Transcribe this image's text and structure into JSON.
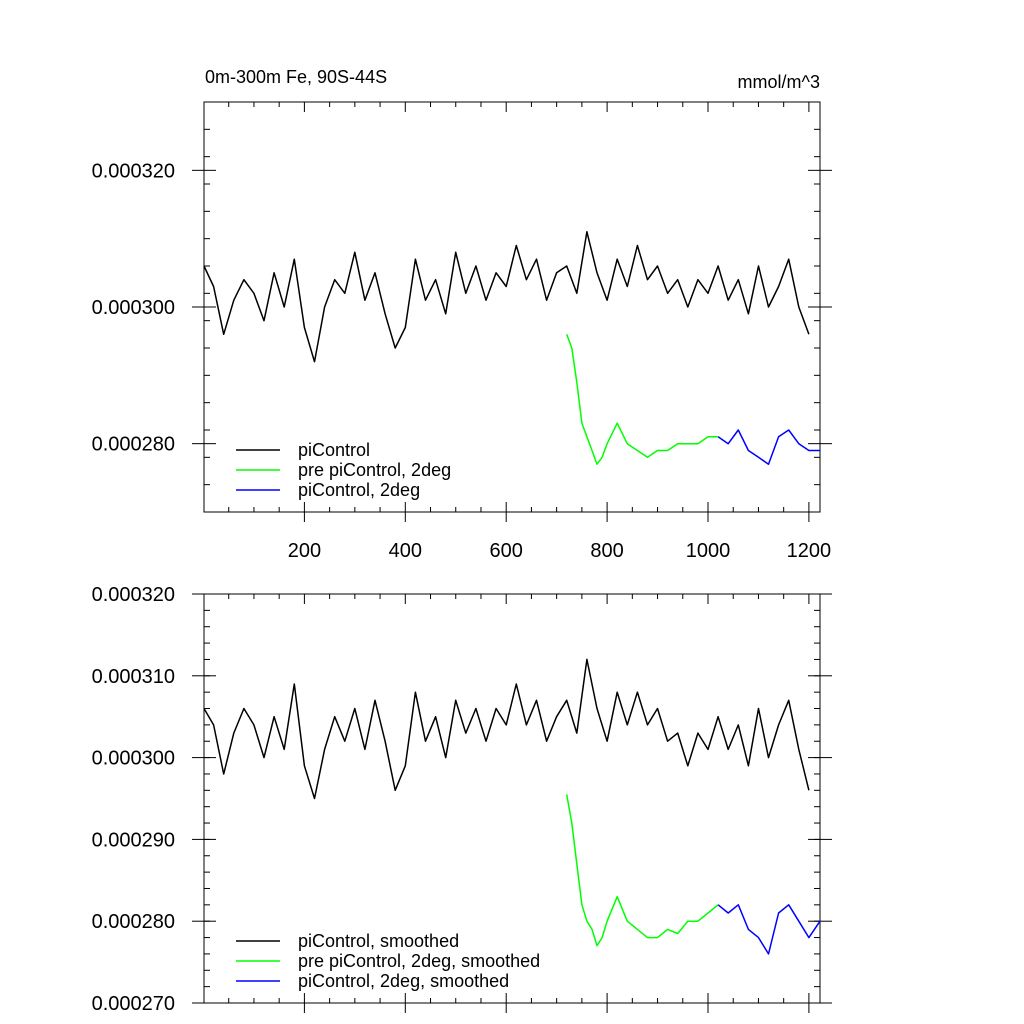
{
  "chart_data": [
    {
      "type": "line",
      "title": "0m-300m Fe, 90S-44S",
      "units": "mmol/m^3",
      "xlim": [
        1,
        1222
      ],
      "ylim": [
        0.00027,
        0.00033
      ],
      "x_ticks": [
        200,
        400,
        600,
        800,
        1000,
        1200
      ],
      "y_ticks": [
        0.00028,
        0.0003,
        0.00032
      ],
      "x_tick_labels": [
        "200",
        "400",
        "600",
        "800",
        "1000",
        "1200"
      ],
      "y_tick_labels": [
        "0.000280",
        "0.000300",
        "0.000320"
      ],
      "legend_position": "bottom-left",
      "series": [
        {
          "name": "piControl",
          "color": "#000000",
          "x": [
            1,
            20,
            40,
            60,
            80,
            100,
            120,
            140,
            160,
            180,
            200,
            220,
            240,
            260,
            280,
            300,
            320,
            340,
            360,
            380,
            400,
            420,
            440,
            460,
            480,
            500,
            520,
            540,
            560,
            580,
            600,
            620,
            640,
            660,
            680,
            700,
            720,
            740,
            760,
            780,
            800,
            820,
            840,
            860,
            880,
            900,
            920,
            940,
            960,
            980,
            1000,
            1020,
            1040,
            1060,
            1080,
            1100,
            1120,
            1140,
            1160,
            1180,
            1200
          ],
          "values": [
            0.000306,
            0.000303,
            0.000296,
            0.000301,
            0.000304,
            0.000302,
            0.000298,
            0.000305,
            0.0003,
            0.000307,
            0.000297,
            0.000292,
            0.0003,
            0.000304,
            0.000302,
            0.000308,
            0.000301,
            0.000305,
            0.000299,
            0.000294,
            0.000297,
            0.000307,
            0.000301,
            0.000304,
            0.000299,
            0.000308,
            0.000302,
            0.000306,
            0.000301,
            0.000305,
            0.000303,
            0.000309,
            0.000304,
            0.000307,
            0.000301,
            0.000305,
            0.000306,
            0.000302,
            0.000311,
            0.000305,
            0.000301,
            0.000307,
            0.000303,
            0.000309,
            0.000304,
            0.000306,
            0.000302,
            0.000304,
            0.0003,
            0.000304,
            0.000302,
            0.000306,
            0.000301,
            0.000304,
            0.000299,
            0.000306,
            0.0003,
            0.000303,
            0.000307,
            0.0003,
            0.000296
          ]
        },
        {
          "name": "pre piControl, 2deg",
          "color": "#00ff00",
          "x": [
            720,
            730,
            740,
            750,
            760,
            770,
            780,
            790,
            800,
            820,
            840,
            860,
            880,
            900,
            920,
            940,
            960,
            980,
            1000,
            1020
          ],
          "values": [
            0.000296,
            0.000294,
            0.000289,
            0.000283,
            0.000281,
            0.000279,
            0.000277,
            0.000278,
            0.00028,
            0.000283,
            0.00028,
            0.000279,
            0.000278,
            0.000279,
            0.000279,
            0.00028,
            0.00028,
            0.00028,
            0.000281,
            0.000281
          ]
        },
        {
          "name": "piControl, 2deg",
          "color": "#0000ff",
          "x": [
            1020,
            1040,
            1060,
            1080,
            1100,
            1120,
            1140,
            1160,
            1180,
            1200,
            1222
          ],
          "values": [
            0.000281,
            0.00028,
            0.000282,
            0.000279,
            0.000278,
            0.000277,
            0.000281,
            0.000282,
            0.00028,
            0.000279,
            0.000279
          ]
        }
      ]
    },
    {
      "type": "line",
      "xlim": [
        1,
        1222
      ],
      "ylim": [
        0.00027,
        0.00032
      ],
      "x_ticks": [
        200,
        400,
        600,
        800,
        1000,
        1200
      ],
      "y_ticks": [
        0.00027,
        0.00028,
        0.00029,
        0.0003,
        0.00031,
        0.00032
      ],
      "y_tick_labels": [
        "0.000270",
        "0.000280",
        "0.000290",
        "0.000300",
        "0.000310",
        "0.000320"
      ],
      "legend_position": "bottom-left",
      "series": [
        {
          "name": "piControl, smoothed",
          "color": "#000000",
          "x": [
            1,
            20,
            40,
            60,
            80,
            100,
            120,
            140,
            160,
            180,
            200,
            220,
            240,
            260,
            280,
            300,
            320,
            340,
            360,
            380,
            400,
            420,
            440,
            460,
            480,
            500,
            520,
            540,
            560,
            580,
            600,
            620,
            640,
            660,
            680,
            700,
            720,
            740,
            760,
            780,
            800,
            820,
            840,
            860,
            880,
            900,
            920,
            940,
            960,
            980,
            1000,
            1020,
            1040,
            1060,
            1080,
            1100,
            1120,
            1140,
            1160,
            1180,
            1200
          ],
          "values": [
            0.000306,
            0.000304,
            0.000298,
            0.000303,
            0.000306,
            0.000304,
            0.0003,
            0.000305,
            0.000301,
            0.000309,
            0.000299,
            0.000295,
            0.000301,
            0.000305,
            0.000302,
            0.000306,
            0.000301,
            0.000307,
            0.000302,
            0.000296,
            0.000299,
            0.000308,
            0.000302,
            0.000305,
            0.0003,
            0.000307,
            0.000303,
            0.000306,
            0.000302,
            0.000306,
            0.000304,
            0.000309,
            0.000304,
            0.000307,
            0.000302,
            0.000305,
            0.000307,
            0.000303,
            0.000312,
            0.000306,
            0.000302,
            0.000308,
            0.000304,
            0.000308,
            0.000304,
            0.000306,
            0.000302,
            0.000303,
            0.000299,
            0.000303,
            0.000301,
            0.000305,
            0.000301,
            0.000304,
            0.000299,
            0.000306,
            0.0003,
            0.000304,
            0.000307,
            0.000301,
            0.000296
          ]
        },
        {
          "name": "pre piControl, 2deg, smoothed",
          "color": "#00ff00",
          "x": [
            720,
            730,
            740,
            750,
            760,
            770,
            780,
            790,
            800,
            820,
            840,
            860,
            880,
            900,
            920,
            940,
            960,
            980,
            1000,
            1020
          ],
          "values": [
            0.0002955,
            0.000292,
            0.000287,
            0.000282,
            0.00028,
            0.000279,
            0.000277,
            0.000278,
            0.00028,
            0.000283,
            0.00028,
            0.000279,
            0.000278,
            0.000278,
            0.000279,
            0.0002785,
            0.00028,
            0.00028,
            0.000281,
            0.000282
          ]
        },
        {
          "name": "piControl, 2deg, smoothed",
          "color": "#0000ff",
          "x": [
            1020,
            1040,
            1060,
            1080,
            1100,
            1120,
            1140,
            1160,
            1180,
            1200,
            1222
          ],
          "values": [
            0.000282,
            0.000281,
            0.000282,
            0.000279,
            0.000278,
            0.000276,
            0.000281,
            0.000282,
            0.00028,
            0.000278,
            0.00028
          ]
        }
      ]
    }
  ]
}
